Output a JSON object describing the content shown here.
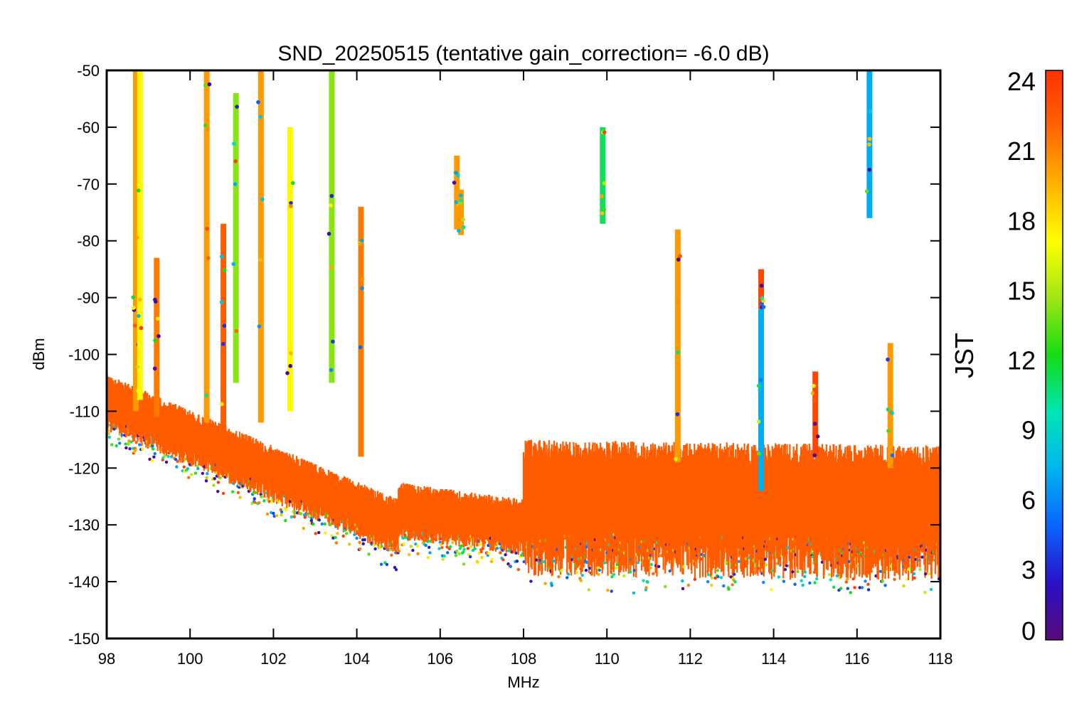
{
  "chart_data": {
    "type": "scatter",
    "title": "SND_20250515 (tentative gain_correction= -6.0 dB)",
    "xlabel": "MHz",
    "ylabel": "dBm",
    "xlim": [
      98,
      118
    ],
    "ylim": [
      -150,
      -50
    ],
    "x_ticks": [
      98,
      100,
      102,
      104,
      106,
      108,
      110,
      112,
      114,
      116,
      118
    ],
    "y_ticks": [
      -50,
      -60,
      -70,
      -80,
      -90,
      -100,
      -110,
      -120,
      -130,
      -140,
      -150
    ],
    "grid": false,
    "colorbar": {
      "label": "JST",
      "range": [
        0,
        24
      ],
      "ticks": [
        0,
        3,
        6,
        9,
        12,
        15,
        18,
        21,
        24
      ],
      "colormap": "rainbow",
      "stops": [
        "#5a0a78",
        "#2a10c8",
        "#0a64ff",
        "#00b4f0",
        "#00e6b4",
        "#14dc14",
        "#a0e614",
        "#ffff00",
        "#ffb400",
        "#ff6400",
        "#ff3200"
      ]
    },
    "series": [
      {
        "values": "noise floor",
        "segments": [
          {
            "x": [
              98.0,
              105.0
            ],
            "y": [
              -108,
              -130
            ],
            "hour": 22
          },
          {
            "x": [
              105.0,
              108.0
            ],
            "y": [
              -127,
              -130
            ],
            "hour": 22
          },
          {
            "x": [
              108.0,
              118.0
            ],
            "y": [
              -125,
              -126
            ],
            "hour": 22
          }
        ]
      }
    ],
    "peaks": [
      {
        "x": 98.7,
        "y_top": -50,
        "y_bottom": -110,
        "hour": 20
      },
      {
        "x": 98.8,
        "y_top": -50,
        "y_bottom": -108,
        "hour": 17
      },
      {
        "x": 99.2,
        "y_top": -83,
        "y_bottom": -111,
        "hour": 21
      },
      {
        "x": 100.4,
        "y_top": -50,
        "y_bottom": -112,
        "hour": 20
      },
      {
        "x": 100.8,
        "y_top": -77,
        "y_bottom": -114,
        "hour": 22
      },
      {
        "x": 101.1,
        "y_top": -54,
        "y_bottom": -105,
        "hour": 14
      },
      {
        "x": 101.7,
        "y_top": -50,
        "y_bottom": -112,
        "hour": 20
      },
      {
        "x": 102.4,
        "y_top": -60,
        "y_bottom": -110,
        "hour": 17
      },
      {
        "x": 103.4,
        "y_top": -50,
        "y_bottom": -105,
        "hour": 14
      },
      {
        "x": 104.1,
        "y_top": -74,
        "y_bottom": -118,
        "hour": 21
      },
      {
        "x": 106.4,
        "y_top": -65,
        "y_bottom": -78,
        "hour": 20
      },
      {
        "x": 106.5,
        "y_top": -71,
        "y_bottom": -79,
        "hour": 20
      },
      {
        "x": 109.9,
        "y_top": -60,
        "y_bottom": -77,
        "hour": 11
      },
      {
        "x": 111.7,
        "y_top": -78,
        "y_bottom": -119,
        "hour": 20
      },
      {
        "x": 113.7,
        "y_top": -85,
        "y_bottom": -92,
        "hour": 23
      },
      {
        "x": 113.7,
        "y_top": -92,
        "y_bottom": -124,
        "hour": 7
      },
      {
        "x": 115.0,
        "y_top": -103,
        "y_bottom": -118,
        "hour": 23
      },
      {
        "x": 116.3,
        "y_top": -50,
        "y_bottom": -76,
        "hour": 7
      },
      {
        "x": 116.8,
        "y_top": -98,
        "y_bottom": -120,
        "hour": 20
      }
    ]
  }
}
